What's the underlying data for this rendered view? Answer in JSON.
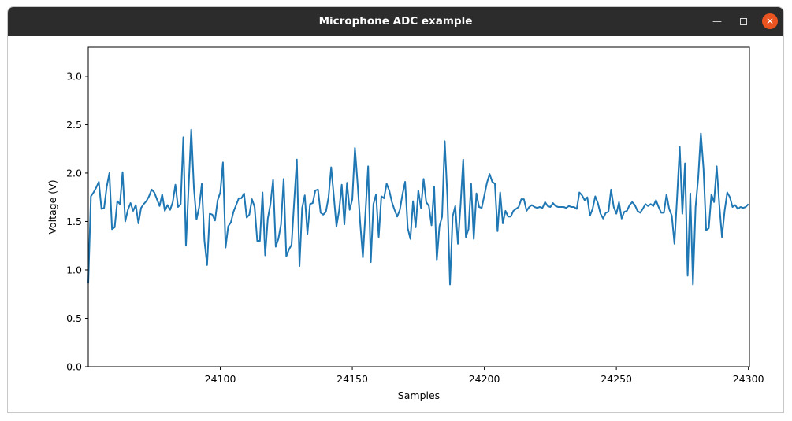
{
  "window": {
    "title": "Microphone ADC example",
    "minimize_icon": "minimize-icon",
    "maximize_icon": "maximize-icon",
    "close_icon": "close-icon",
    "close_color": "#e95420"
  },
  "chart_data": {
    "type": "line",
    "title": "",
    "xlabel": "Samples",
    "ylabel": "Voltage (V)",
    "xlim": [
      24050,
      24300.4
    ],
    "ylim": [
      0,
      3.3
    ],
    "x_ticks": [
      "24100",
      "24150",
      "24200",
      "24250",
      "24300"
    ],
    "y_ticks": [
      "0.0",
      "0.5",
      "1.0",
      "1.5",
      "2.0",
      "2.5",
      "3.0"
    ],
    "grid": false,
    "line_color": "#1f77b4",
    "series": [
      {
        "x_start": 24050,
        "x_step": 1,
        "values": [
          0.86,
          1.76,
          1.8,
          1.85,
          1.91,
          1.63,
          1.64,
          1.86,
          2.0,
          1.42,
          1.44,
          1.71,
          1.68,
          2.01,
          1.5,
          1.62,
          1.69,
          1.61,
          1.67,
          1.48,
          1.64,
          1.68,
          1.71,
          1.76,
          1.83,
          1.8,
          1.73,
          1.66,
          1.78,
          1.61,
          1.67,
          1.62,
          1.7,
          1.88,
          1.65,
          1.68,
          2.37,
          1.25,
          1.85,
          2.45,
          1.85,
          1.52,
          1.65,
          1.89,
          1.3,
          1.05,
          1.58,
          1.57,
          1.51,
          1.72,
          1.8,
          2.11,
          1.23,
          1.45,
          1.49,
          1.6,
          1.67,
          1.74,
          1.74,
          1.79,
          1.54,
          1.57,
          1.73,
          1.65,
          1.3,
          1.3,
          1.8,
          1.15,
          1.53,
          1.68,
          1.93,
          1.24,
          1.32,
          1.47,
          1.94,
          1.14,
          1.21,
          1.26,
          1.71,
          2.14,
          1.04,
          1.64,
          1.77,
          1.37,
          1.68,
          1.69,
          1.82,
          1.83,
          1.59,
          1.57,
          1.6,
          1.75,
          2.06,
          1.76,
          1.45,
          1.61,
          1.88,
          1.47,
          1.9,
          1.62,
          1.73,
          2.26,
          1.89,
          1.48,
          1.13,
          1.6,
          2.07,
          1.08,
          1.68,
          1.78,
          1.34,
          1.76,
          1.74,
          1.89,
          1.82,
          1.7,
          1.62,
          1.55,
          1.62,
          1.78,
          1.91,
          1.43,
          1.32,
          1.71,
          1.44,
          1.82,
          1.64,
          1.94,
          1.7,
          1.66,
          1.46,
          1.86,
          1.1,
          1.45,
          1.55,
          2.33,
          1.76,
          0.85,
          1.55,
          1.66,
          1.27,
          1.67,
          2.14,
          1.34,
          1.42,
          1.89,
          1.32,
          1.79,
          1.65,
          1.64,
          1.77,
          1.9,
          1.99,
          1.91,
          1.89,
          1.4,
          1.8,
          1.48,
          1.61,
          1.55,
          1.55,
          1.61,
          1.63,
          1.65,
          1.73,
          1.73,
          1.61,
          1.65,
          1.67,
          1.65,
          1.64,
          1.65,
          1.64,
          1.7,
          1.66,
          1.65,
          1.69,
          1.66,
          1.65,
          1.65,
          1.65,
          1.64,
          1.66,
          1.65,
          1.65,
          1.63,
          1.8,
          1.77,
          1.72,
          1.75,
          1.56,
          1.63,
          1.76,
          1.69,
          1.58,
          1.53,
          1.59,
          1.6,
          1.83,
          1.65,
          1.58,
          1.7,
          1.53,
          1.6,
          1.61,
          1.67,
          1.7,
          1.67,
          1.61,
          1.59,
          1.63,
          1.68,
          1.66,
          1.68,
          1.66,
          1.72,
          1.65,
          1.59,
          1.59,
          1.78,
          1.63,
          1.56,
          1.27,
          1.75,
          2.27,
          1.58,
          2.1,
          0.94,
          1.79,
          0.85,
          1.65,
          1.95,
          2.41,
          2.05,
          1.41,
          1.43,
          1.78,
          1.7,
          2.07,
          1.67,
          1.34,
          1.61,
          1.8,
          1.75,
          1.65,
          1.67,
          1.63,
          1.65,
          1.64,
          1.65,
          1.68
        ]
      }
    ]
  }
}
